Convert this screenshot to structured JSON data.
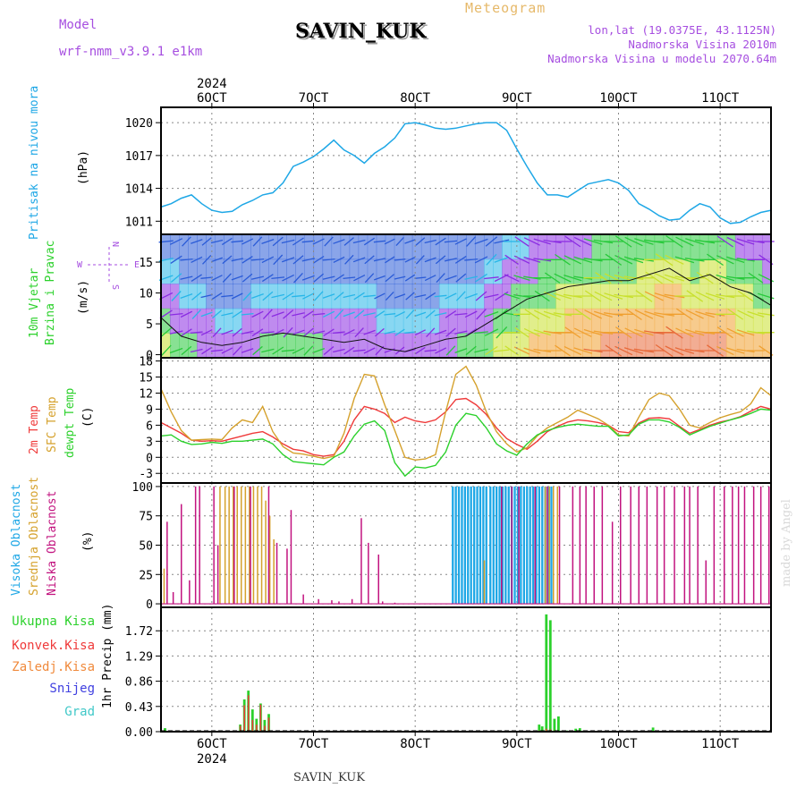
{
  "header": {
    "model_label": "Model",
    "model_name": "wrf-nmm_v3.9.1 e1km",
    "station": "SAVIN_KUK",
    "meteogram_label": "Meteogram",
    "lonlat": "lon,lat (19.0375E, 43.1125N)",
    "elevation": "Nadmorska Visina 2010m",
    "model_elevation": "Nadmorska Visina u modelu 2070.64m"
  },
  "footer": {
    "station": "SAVIN_KUK",
    "credit": "made by Angel"
  },
  "axis_top": {
    "year": "2024",
    "ticks": [
      "6OCT",
      "7OCT",
      "8OCT",
      "9OCT",
      "10OCT",
      "11OCT"
    ]
  },
  "axis_bottom": {
    "year": "2024",
    "ticks": [
      "6OCT",
      "7OCT",
      "8OCT",
      "9OCT",
      "10OCT",
      "11OCT"
    ]
  },
  "colors": {
    "pressure": "#1ea7e6",
    "wind_title": "#2cd12c",
    "wind_dirs": "#a64ee0",
    "temp2m": "#ef3a3a",
    "sfc_temp": "#d5a12c",
    "dewpt": "#2cd12c",
    "cloud_high": "#1ea7e6",
    "cloud_mid": "#d5a12c",
    "cloud_low": "#c2137f",
    "precip_total": "#2cd12c",
    "precip_conv": "#ef3a3a",
    "precip_frozen": "#f08a3c",
    "precip_snow": "#4040e0",
    "precip_graupel": "#40c8c8"
  },
  "chart_data": [
    {
      "type": "line",
      "panel": "pressure",
      "ylabel_outer": "Pritisak na nivou mora",
      "ylabel_inner": "(hPa)",
      "yticks": [
        1011,
        1014,
        1017,
        1020
      ],
      "ylim": [
        1009.8,
        1021.4
      ],
      "xlim": [
        5.5,
        11.5
      ],
      "grid": true,
      "series": [
        {
          "key": "pressure",
          "x": [
            5.5,
            5.6,
            5.7,
            5.8,
            5.9,
            6.0,
            6.1,
            6.2,
            6.3,
            6.4,
            6.5,
            6.6,
            6.7,
            6.8,
            6.9,
            7.0,
            7.1,
            7.2,
            7.3,
            7.4,
            7.5,
            7.6,
            7.7,
            7.8,
            7.9,
            8.0,
            8.1,
            8.2,
            8.3,
            8.4,
            8.5,
            8.6,
            8.7,
            8.8,
            8.9,
            9.0,
            9.1,
            9.2,
            9.3,
            9.4,
            9.5,
            9.6,
            9.7,
            9.8,
            9.9,
            10.0,
            10.1,
            10.2,
            10.3,
            10.4,
            10.5,
            10.6,
            10.7,
            10.8,
            10.9,
            11.0,
            11.1,
            11.2,
            11.3,
            11.4,
            11.5
          ],
          "y": [
            1012.3,
            1012.6,
            1013.1,
            1013.4,
            1012.6,
            1012.0,
            1011.8,
            1011.9,
            1012.5,
            1012.9,
            1013.4,
            1013.6,
            1014.5,
            1016.0,
            1016.4,
            1016.9,
            1017.6,
            1018.4,
            1017.5,
            1017.0,
            1016.3,
            1017.2,
            1017.8,
            1018.6,
            1019.9,
            1020.0,
            1019.8,
            1019.5,
            1019.4,
            1019.5,
            1019.7,
            1019.9,
            1020.0,
            1020.0,
            1019.3,
            1017.6,
            1016.0,
            1014.5,
            1013.4,
            1013.4,
            1013.2,
            1013.8,
            1014.4,
            1014.6,
            1014.8,
            1014.5,
            1013.8,
            1012.6,
            1012.1,
            1011.5,
            1011.1,
            1011.2,
            1012.0,
            1012.6,
            1012.3,
            1011.3,
            1010.8,
            1010.9,
            1011.4,
            1011.8,
            1012.0
          ]
        }
      ]
    },
    {
      "type": "line",
      "panel": "wind",
      "ylabel_outer": [
        "10m Vjetar",
        "Brzina i Pravac"
      ],
      "ylabel_inner": "(m/s)",
      "compass": {
        "w": "W",
        "e": "E",
        "n": "N",
        "s": "S"
      },
      "yticks": [
        0,
        5,
        10,
        15
      ],
      "ylim": [
        -0.5,
        19.5
      ],
      "xlim": [
        5.5,
        11.5
      ],
      "series": [
        {
          "key": "wind_speed",
          "x": [
            5.5,
            5.7,
            5.9,
            6.1,
            6.3,
            6.5,
            6.7,
            6.9,
            7.1,
            7.3,
            7.5,
            7.7,
            7.9,
            8.1,
            8.3,
            8.5,
            8.7,
            8.9,
            9.1,
            9.3,
            9.5,
            9.7,
            9.9,
            10.1,
            10.3,
            10.5,
            10.7,
            10.9,
            11.1,
            11.3,
            11.5
          ],
          "y": [
            6,
            3,
            2,
            1.5,
            2,
            3,
            3.5,
            3,
            2.5,
            2,
            2.5,
            1,
            0.5,
            1.5,
            2.5,
            3,
            5,
            7,
            9,
            10,
            11,
            11.5,
            12,
            12,
            13,
            14,
            12,
            13,
            11,
            10,
            8
          ]
        }
      ]
    },
    {
      "type": "line",
      "panel": "temperature",
      "ylabel_outer": [
        "2m Temp",
        "SFC Temp",
        "dewpt Temp"
      ],
      "ylabel_inner": "(C)",
      "yticks": [
        -3,
        0,
        3,
        6,
        9,
        12,
        15,
        18
      ],
      "ylim": [
        -4.8,
        18.6
      ],
      "xlim": [
        5.5,
        11.5
      ],
      "grid": true,
      "series": [
        {
          "key": "temp2m",
          "name": "2m Temp",
          "x": [
            5.5,
            5.6,
            5.7,
            5.8,
            5.9,
            6.0,
            6.1,
            6.2,
            6.3,
            6.4,
            6.5,
            6.6,
            6.7,
            6.8,
            6.9,
            7.0,
            7.1,
            7.2,
            7.3,
            7.4,
            7.5,
            7.6,
            7.7,
            7.8,
            7.9,
            8.0,
            8.1,
            8.2,
            8.3,
            8.4,
            8.5,
            8.6,
            8.7,
            8.8,
            8.9,
            9.0,
            9.1,
            9.2,
            9.3,
            9.4,
            9.5,
            9.6,
            9.7,
            9.8,
            9.9,
            10.0,
            10.1,
            10.2,
            10.3,
            10.4,
            10.5,
            10.6,
            10.7,
            10.8,
            10.9,
            11.0,
            11.1,
            11.2,
            11.3,
            11.4,
            11.5
          ],
          "y": [
            6.5,
            5.5,
            4.5,
            3.2,
            3.0,
            3.1,
            3.0,
            3.5,
            4.0,
            4.5,
            4.8,
            3.8,
            2.5,
            1.5,
            1.2,
            0.5,
            0.2,
            0.5,
            3.0,
            7.0,
            9.5,
            9.0,
            8.2,
            6.5,
            7.5,
            6.8,
            6.5,
            7.0,
            8.5,
            10.8,
            11.0,
            9.8,
            8.0,
            5.5,
            3.5,
            2.4,
            1.5,
            3.0,
            4.8,
            5.8,
            6.6,
            7.0,
            6.8,
            6.5,
            6.0,
            4.8,
            4.6,
            6.4,
            7.3,
            7.4,
            7.2,
            5.8,
            4.5,
            5.2,
            6.0,
            6.6,
            7.0,
            7.6,
            8.6,
            9.5,
            9.0
          ]
        },
        {
          "key": "sfc_temp",
          "name": "SFC Temp",
          "x": [
            5.5,
            5.6,
            5.7,
            5.8,
            5.9,
            6.0,
            6.1,
            6.2,
            6.3,
            6.4,
            6.5,
            6.6,
            6.7,
            6.8,
            6.9,
            7.0,
            7.1,
            7.2,
            7.3,
            7.4,
            7.5,
            7.6,
            7.7,
            7.8,
            7.9,
            8.0,
            8.1,
            8.2,
            8.3,
            8.4,
            8.5,
            8.6,
            8.7,
            8.8,
            8.9,
            9.0,
            9.1,
            9.2,
            9.3,
            9.4,
            9.5,
            9.6,
            9.7,
            9.8,
            9.9,
            10.0,
            10.1,
            10.2,
            10.3,
            10.4,
            10.5,
            10.6,
            10.7,
            10.8,
            10.9,
            11.0,
            11.1,
            11.2,
            11.3,
            11.4,
            11.5
          ],
          "y": [
            12.8,
            8.5,
            5.0,
            3.2,
            3.3,
            3.4,
            3.3,
            5.5,
            7.0,
            6.5,
            9.5,
            4.8,
            2.0,
            0.8,
            0.6,
            0.2,
            -0.2,
            0.2,
            4.5,
            11.0,
            15.5,
            15.2,
            9.8,
            5.0,
            0.0,
            -0.5,
            -0.3,
            0.5,
            8.5,
            15.5,
            17.0,
            13.5,
            8.5,
            4.8,
            2.5,
            1.0,
            1.8,
            4.0,
            5.5,
            6.5,
            7.5,
            8.8,
            8.0,
            7.2,
            6.0,
            4.2,
            4.0,
            7.5,
            10.8,
            12.0,
            11.5,
            9.0,
            6.0,
            5.5,
            6.5,
            7.4,
            8.0,
            8.5,
            10.0,
            13.0,
            11.5
          ]
        },
        {
          "key": "dewpt",
          "name": "dewpt Temp",
          "x": [
            5.5,
            5.6,
            5.7,
            5.8,
            5.9,
            6.0,
            6.1,
            6.2,
            6.3,
            6.4,
            6.5,
            6.6,
            6.7,
            6.8,
            6.9,
            7.0,
            7.1,
            7.2,
            7.3,
            7.4,
            7.5,
            7.6,
            7.7,
            7.8,
            7.9,
            8.0,
            8.1,
            8.2,
            8.3,
            8.4,
            8.5,
            8.6,
            8.7,
            8.8,
            8.9,
            9.0,
            9.1,
            9.2,
            9.3,
            9.4,
            9.5,
            9.6,
            9.7,
            9.8,
            9.9,
            10.0,
            10.1,
            10.2,
            10.3,
            10.4,
            10.5,
            10.6,
            10.7,
            10.8,
            10.9,
            11.0,
            11.1,
            11.2,
            11.3,
            11.4,
            11.5
          ],
          "y": [
            4.0,
            4.2,
            3.0,
            2.4,
            2.5,
            2.8,
            2.6,
            3.0,
            3.0,
            3.2,
            3.4,
            2.5,
            0.5,
            -0.8,
            -1.0,
            -1.2,
            -1.4,
            0.0,
            1.0,
            4.0,
            6.2,
            6.8,
            5.0,
            -1.0,
            -3.5,
            -1.8,
            -2.0,
            -1.5,
            1.0,
            6.0,
            8.2,
            7.8,
            5.5,
            2.5,
            1.2,
            0.4,
            2.5,
            4.2,
            5.0,
            5.6,
            6.0,
            6.2,
            6.0,
            5.8,
            5.8,
            4.0,
            4.2,
            6.2,
            7.0,
            7.0,
            6.6,
            5.6,
            4.2,
            5.0,
            5.8,
            6.4,
            7.0,
            7.5,
            8.2,
            9.0,
            8.8
          ]
        }
      ]
    },
    {
      "type": "bar",
      "panel": "clouds",
      "ylabel_outer": [
        "Visoka Oblacnost",
        "Srednja Oblacnost",
        "Niska Oblacnost"
      ],
      "ylabel_inner": "(%)",
      "yticks": [
        0,
        25,
        50,
        75,
        100
      ],
      "ylim": [
        -3,
        103
      ],
      "xlim": [
        5.5,
        11.5
      ],
      "grid": true,
      "series": [
        {
          "key": "cloud_high",
          "name": "Visoka Oblacnost",
          "bar_width": 0.02,
          "x": [
            8.37,
            8.4,
            8.43,
            8.46,
            8.49,
            8.52,
            8.55,
            8.58,
            8.61,
            8.64,
            8.67,
            8.7,
            8.74,
            8.77,
            8.8,
            8.83,
            8.86,
            8.89,
            8.92,
            8.95,
            8.98,
            9.01,
            9.04,
            9.07,
            9.1,
            9.13,
            9.16,
            9.19,
            9.22,
            9.25,
            9.28,
            9.31,
            9.34
          ],
          "y": [
            100,
            100,
            100,
            100,
            100,
            100,
            100,
            100,
            100,
            100,
            100,
            100,
            100,
            100,
            100,
            100,
            100,
            100,
            100,
            100,
            100,
            100,
            100,
            100,
            100,
            100,
            100,
            100,
            100,
            100,
            100,
            100,
            100
          ]
        },
        {
          "key": "cloud_mid",
          "name": "Srednja Oblacnost",
          "bar_width": 0.012,
          "x": [
            5.53,
            6.08,
            6.13,
            6.17,
            6.21,
            6.25,
            6.29,
            6.33,
            6.37,
            6.41,
            6.45,
            6.49,
            6.53,
            6.57,
            6.61,
            8.68,
            9.28,
            9.32,
            9.36,
            9.4
          ],
          "y": [
            30,
            100,
            100,
            100,
            100,
            100,
            100,
            100,
            100,
            100,
            100,
            100,
            88,
            75,
            55,
            37,
            100,
            100,
            100,
            100
          ]
        },
        {
          "key": "cloud_low",
          "name": "Niska Oblacnost",
          "bar_width": 0.01,
          "x": [
            5.56,
            5.62,
            5.7,
            5.78,
            5.84,
            5.88,
            6.02,
            6.06,
            6.22,
            6.38,
            6.56,
            6.64,
            6.74,
            6.78,
            6.9,
            7.05,
            7.18,
            7.25,
            7.38,
            7.47,
            7.54,
            7.64,
            7.68,
            7.8,
            8.85,
            8.95,
            9.02,
            9.18,
            9.3,
            9.42,
            9.55,
            9.62,
            9.68,
            9.76,
            9.84,
            9.94,
            10.02,
            10.12,
            10.2,
            10.28,
            10.38,
            10.45,
            10.55,
            10.65,
            10.7,
            10.78,
            10.86,
            10.94,
            11.04,
            11.12,
            11.18,
            11.24,
            11.33,
            11.4,
            11.48
          ],
          "y": [
            70,
            10,
            85,
            20,
            100,
            100,
            100,
            50,
            100,
            100,
            100,
            52,
            47,
            80,
            8,
            4,
            3,
            2,
            4,
            73,
            52,
            42,
            2,
            1,
            100,
            100,
            100,
            100,
            100,
            100,
            100,
            100,
            100,
            100,
            100,
            70,
            100,
            100,
            100,
            100,
            100,
            100,
            100,
            100,
            100,
            100,
            37,
            100,
            100,
            100,
            100,
            100,
            100,
            100,
            100
          ]
        }
      ]
    },
    {
      "type": "bar",
      "panel": "precipitation",
      "legend": [
        "Ukupna Kisa",
        "Konvek.Kisa",
        "Zaledj.Kisa",
        "Snijeg",
        "Grad"
      ],
      "ylabel_inner": "1hr Precip (mm)",
      "yticks": [
        0,
        0.43,
        0.86,
        1.29,
        1.72
      ],
      "ylim": [
        0,
        2.12
      ],
      "xlim": [
        5.5,
        11.5
      ],
      "grid": true,
      "series": [
        {
          "key": "precip_total",
          "name": "Ukupna Kisa",
          "bar_width": 0.025,
          "x": [
            5.54,
            6.28,
            6.32,
            6.36,
            6.4,
            6.44,
            6.48,
            6.52,
            6.56,
            9.22,
            9.25,
            9.29,
            9.33,
            9.37,
            9.41,
            9.45,
            9.49,
            9.53,
            9.58,
            9.62,
            9.66,
            10.34
          ],
          "y": [
            0.06,
            0.12,
            0.55,
            0.7,
            0.38,
            0.22,
            0.48,
            0.2,
            0.3,
            0.12,
            0.09,
            2.0,
            1.9,
            0.22,
            0.26,
            0.02,
            0.02,
            0.02,
            0.05,
            0.06,
            0.02,
            0.07
          ]
        },
        {
          "key": "precip_conv",
          "name": "Konvek.Kisa",
          "bar_width": 0.012,
          "x": [
            6.28,
            6.32,
            6.36,
            6.4,
            6.44,
            6.48,
            6.52,
            6.56,
            9.22,
            9.25,
            9.29,
            9.33,
            9.37
          ],
          "y": [
            0.1,
            0.45,
            0.62,
            0.2,
            0.12,
            0.46,
            0.1,
            0.24,
            0.02,
            0.02,
            0.05,
            0.04,
            0.02
          ]
        },
        {
          "key": "precip_frozen",
          "name": "Zaledj.Kisa",
          "x": [],
          "y": []
        },
        {
          "key": "precip_snow",
          "name": "Snijeg",
          "x": [],
          "y": []
        },
        {
          "key": "precip_graupel",
          "name": "Grad",
          "x": [],
          "y": []
        }
      ]
    }
  ]
}
